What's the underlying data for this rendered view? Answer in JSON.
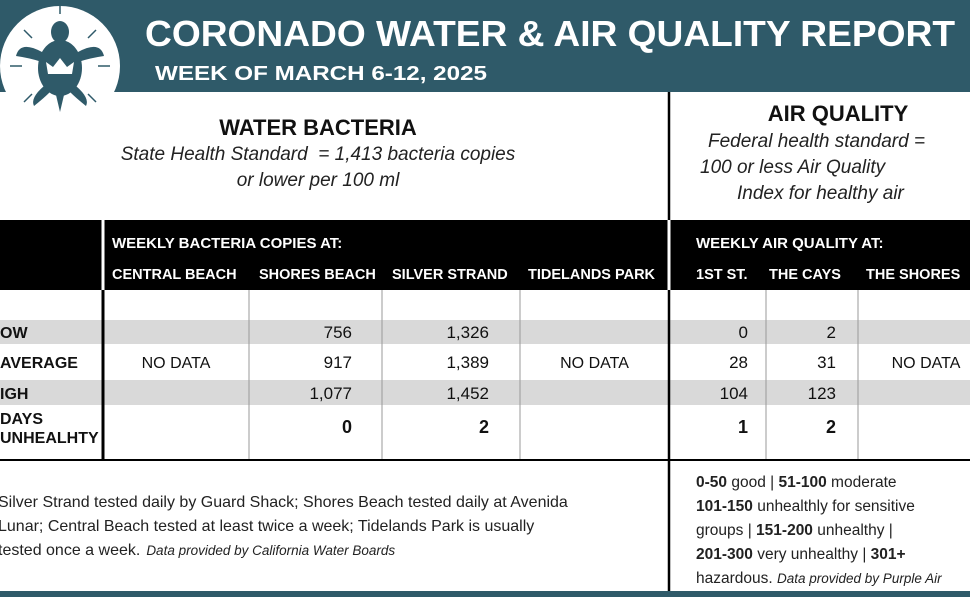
{
  "header": {
    "title": "CORONADO WATER & AIR QUALITY REPORT",
    "subtitle": "WEEK OF MARCH 6-12, 2025"
  },
  "water": {
    "heading": "WATER BACTERIA",
    "standard": [
      "State Health Standard  = 1,413 bacteria copies",
      "or lower per 100 ml"
    ]
  },
  "air": {
    "heading": "AIR QUALITY",
    "standard": [
      "Federal health standard =",
      "100 or less Air Quality",
      "Index for healthy air"
    ]
  },
  "table": {
    "water_group": "WEEKLY BACTERIA COPIES AT:",
    "air_group": "WEEKLY AIR QUALITY AT:",
    "columns": [
      "CENTRAL BEACH",
      "SHORES BEACH",
      "SILVER STRAND",
      "TIDELANDS PARK",
      "1ST ST.",
      "THE CAYS",
      "THE SHORES"
    ],
    "row_labels": [
      [
        "OW"
      ],
      [
        "AVERAGE"
      ],
      [
        "IGH"
      ],
      [
        "DAYS",
        "UNHEALHTY"
      ]
    ],
    "rows": [
      [
        null,
        756,
        "1,326",
        null,
        0,
        2,
        null
      ],
      [
        "NO DATA",
        917,
        "1,389",
        "NO DATA",
        28,
        31,
        "NO DATA"
      ],
      [
        null,
        "1,077",
        "1,452",
        null,
        104,
        123,
        null
      ],
      [
        null,
        0,
        2,
        null,
        1,
        2,
        null
      ]
    ]
  },
  "water_note": {
    "lines": [
      "Silver Strand tested daily by Guard Shack; Shores Beach tested daily at Avenida",
      "Lunar; Central Beach tested at least twice a week; Tidelands Park is usually",
      "tested once a week."
    ],
    "source": "Data provided by California Water Boards"
  },
  "air_note": {
    "lines": [
      [
        {
          "text": "0-50",
          "style": "bold"
        },
        {
          "text": " good | ",
          "style": "normal"
        },
        {
          "text": "51-100",
          "style": "bold"
        },
        {
          "text": " moderate",
          "style": "normal"
        }
      ],
      [
        {
          "text": "101-150",
          "style": "bold"
        },
        {
          "text": " unhealthly for sensitive",
          "style": "normal"
        }
      ],
      [
        {
          "text": "groups | ",
          "style": "normal"
        },
        {
          "text": "151-200",
          "style": "bold"
        },
        {
          "text": " unhealthy |",
          "style": "normal"
        }
      ],
      [
        {
          "text": "201-300",
          "style": "bold"
        },
        {
          "text": " very unhealthy | ",
          "style": "normal"
        },
        {
          "text": "301+",
          "style": "bold"
        }
      ],
      [
        {
          "text": "hazardous. ",
          "style": "normal"
        },
        {
          "text": "Data provided by Purple Air",
          "style": "italic"
        }
      ]
    ]
  }
}
